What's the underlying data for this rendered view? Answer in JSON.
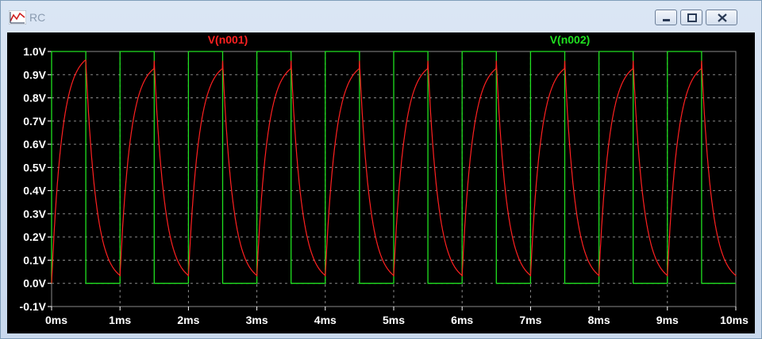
{
  "window": {
    "title": "RC",
    "icon": "waveform-chart-icon",
    "controls": [
      "minimize-icon",
      "maximize-icon",
      "close-icon"
    ]
  },
  "colors": {
    "plot_background": "#000000",
    "grid": "#8a8a8a",
    "axis_text": "#ffffff",
    "series_n001": "#ff2020",
    "series_n002": "#20e020"
  },
  "chart_data": {
    "type": "line",
    "xlabel": "",
    "ylabel": "",
    "x_unit": "ms",
    "y_unit": "V",
    "xlim": [
      0,
      10
    ],
    "ylim": [
      -0.1,
      1.0
    ],
    "x_ticks": [
      "0ms",
      "1ms",
      "2ms",
      "3ms",
      "4ms",
      "5ms",
      "6ms",
      "7ms",
      "8ms",
      "9ms",
      "10ms"
    ],
    "y_ticks": [
      "1.0V",
      "0.9V",
      "0.8V",
      "0.7V",
      "0.6V",
      "0.5V",
      "0.4V",
      "0.3V",
      "0.2V",
      "0.1V",
      "0.0V",
      "-0.1V"
    ],
    "grid": true,
    "series": [
      {
        "name": "V(n001)",
        "kind": "rc-charge-discharge",
        "peak": 0.96,
        "trough": 0.03,
        "time_constant_ms": 0.15
      },
      {
        "name": "V(n002)",
        "kind": "square-wave",
        "high": 1.0,
        "low": 0.0,
        "period_ms": 1.0,
        "duty": 0.5
      }
    ]
  }
}
